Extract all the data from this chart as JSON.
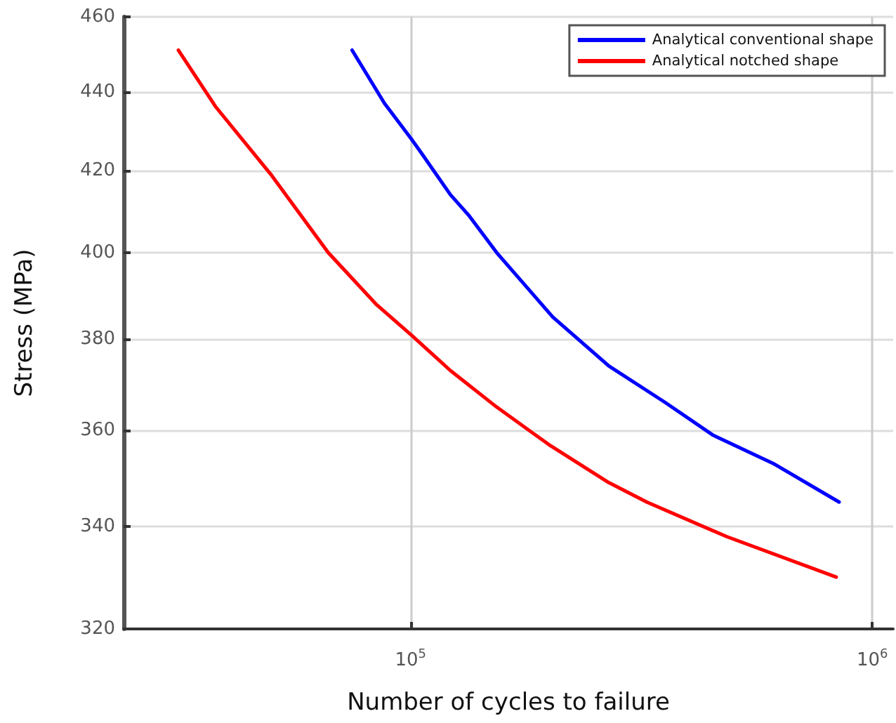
{
  "chart_data": {
    "type": "line",
    "xlabel": "Number of cycles to failure",
    "ylabel": "Stress (MPa)",
    "log": "xy",
    "grid": true,
    "legend": "top right",
    "marker": "none",
    "line_style": "solid",
    "xlim": [
      23900,
      1110000
    ],
    "ylim": [
      320,
      460
    ],
    "xticks": [
      {
        "value": 100000,
        "label": "10$^{5}$"
      },
      {
        "value": 1000000,
        "label": "10$^{6}$"
      }
    ],
    "yticks": [
      320,
      340,
      360,
      380,
      400,
      420,
      440,
      460
    ],
    "series": [
      {
        "name": "Analytical conventional shape",
        "color": "#0000ff",
        "x": [
          74700,
          87800,
          100200,
          106000,
          121900,
          133500,
          153600,
          203200,
          268800,
          355800,
          451200,
          609900,
          847600
        ],
        "values": [
          451,
          437,
          428,
          424,
          414,
          409,
          400,
          385,
          374,
          366,
          359,
          353,
          345
        ]
      },
      {
        "name": "Analytical notched shape",
        "color": "#ff0000",
        "x": [
          31400,
          37900,
          49800,
          66300,
          84100,
          100200,
          121900,
          153600,
          199000,
          268800,
          324800,
          484000,
          835500
        ],
        "values": [
          451,
          436,
          419,
          400,
          388,
          381,
          373,
          365,
          357,
          349,
          345,
          338,
          330
        ]
      }
    ]
  }
}
